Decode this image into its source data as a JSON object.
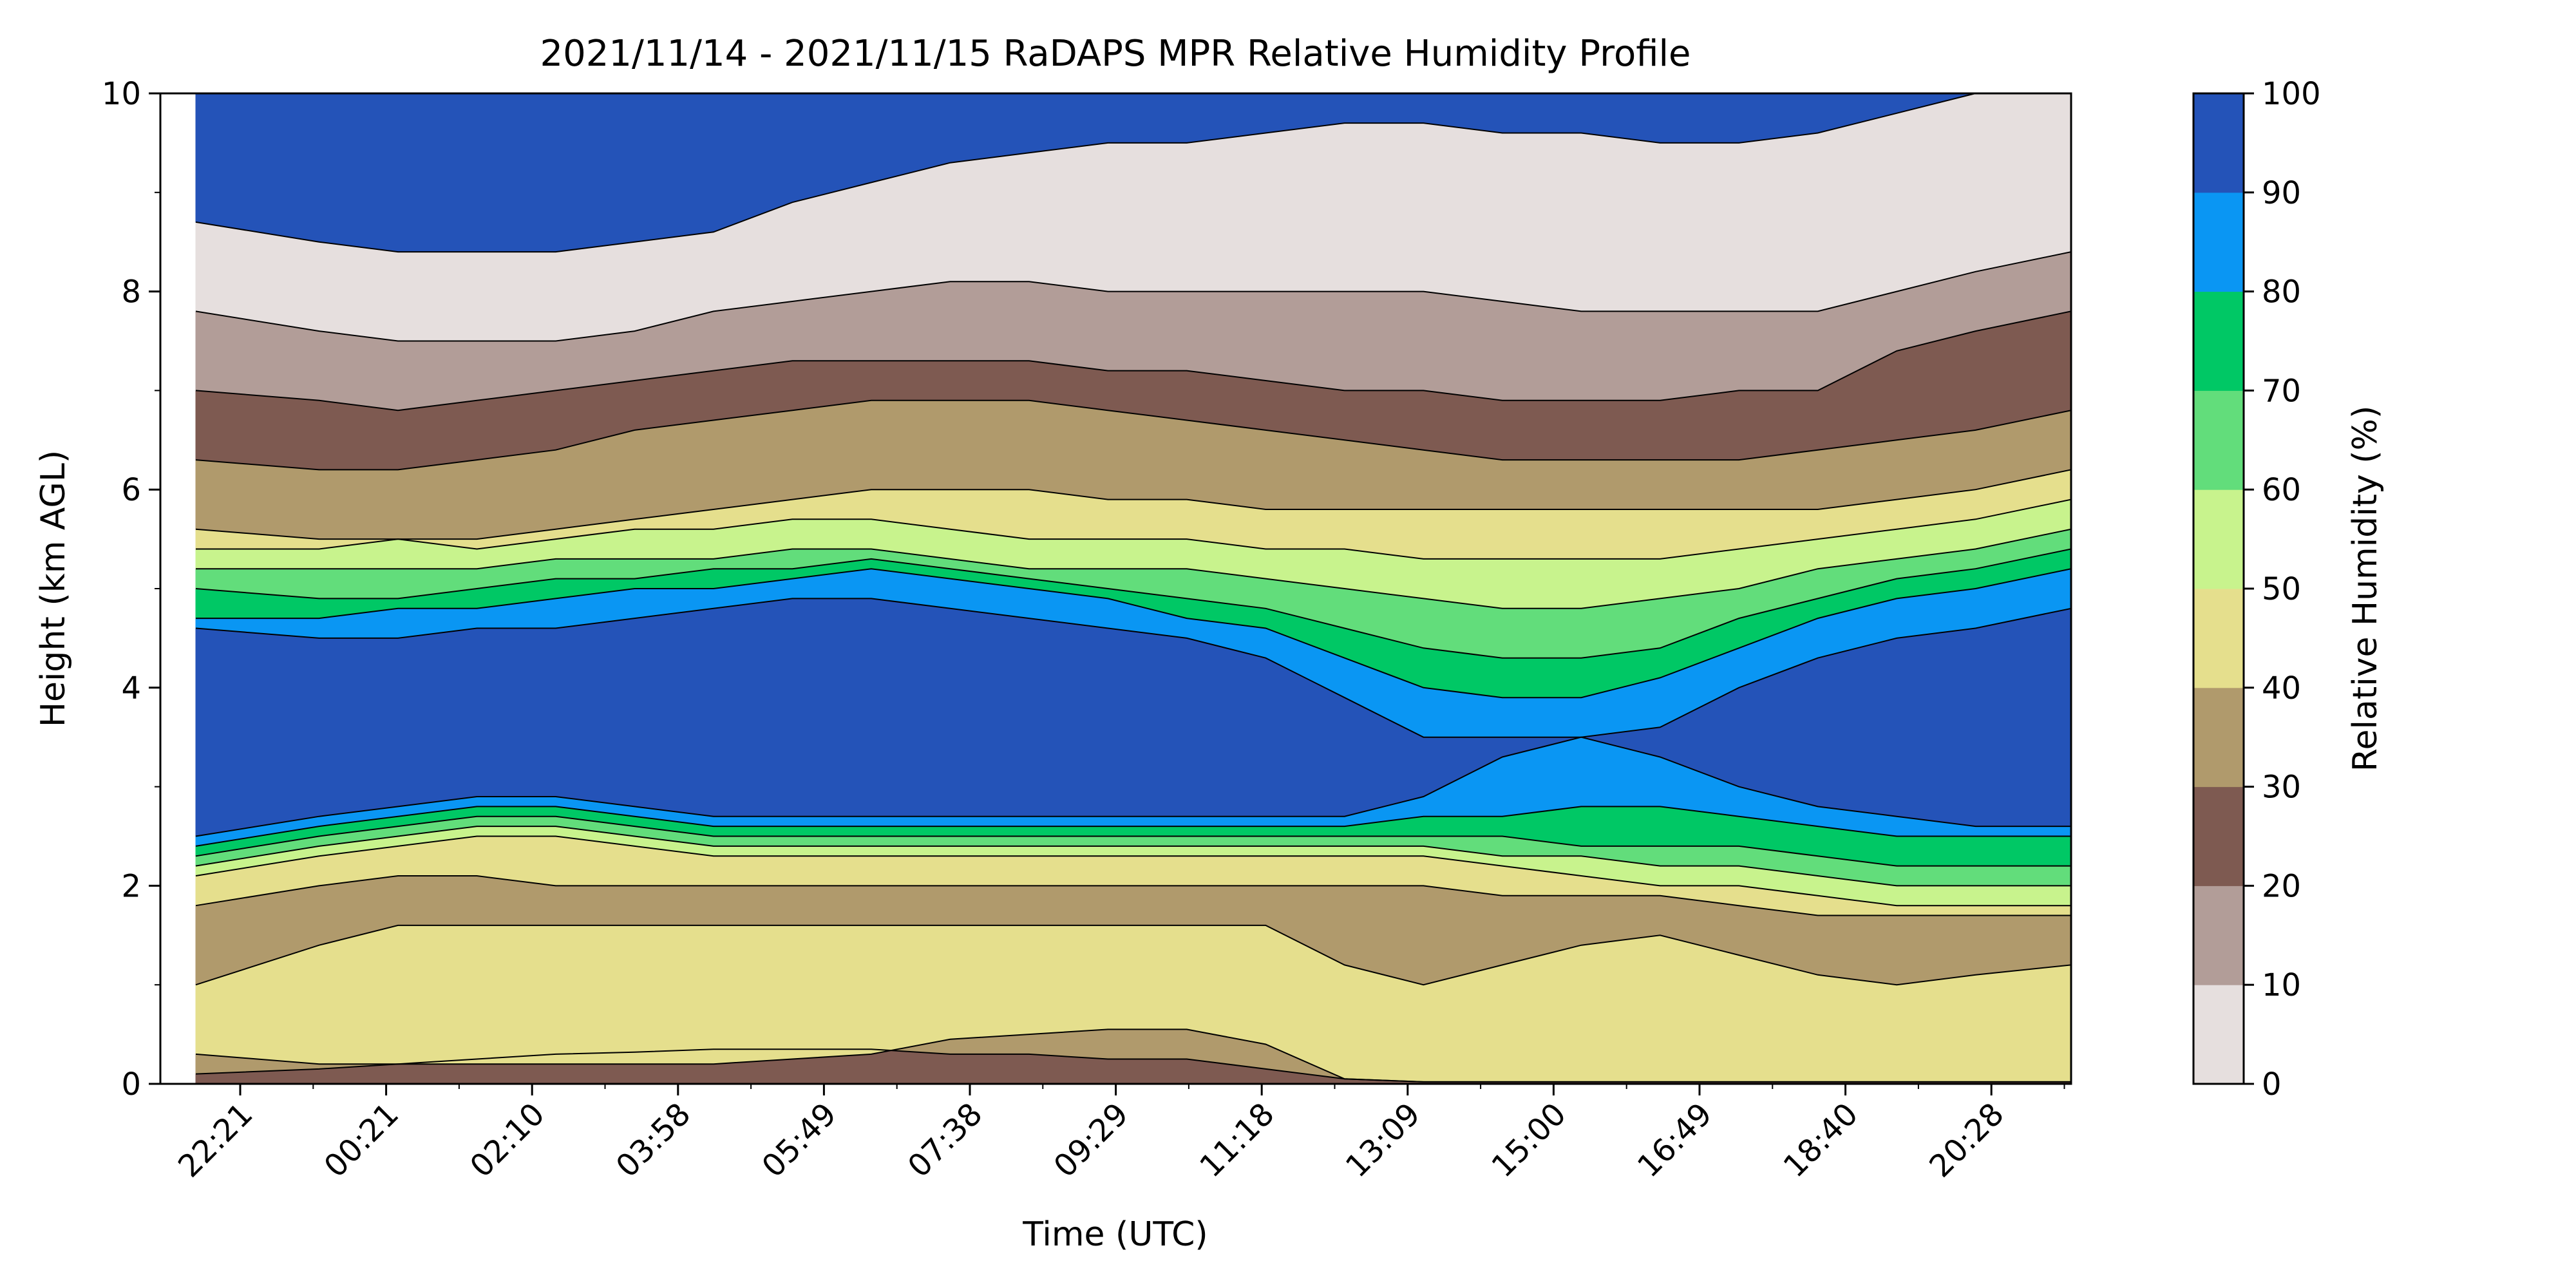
{
  "chart_data": {
    "type": "heatmap",
    "subtype": "filled-contour",
    "title": "2021/11/14 - 2021/11/15 RaDAPS MPR Relative Humidity Profile",
    "xlabel": "Time (UTC)",
    "ylabel": "Height (km AGL)",
    "x_ticks": [
      "22:21",
      "00:21",
      "02:10",
      "03:58",
      "05:49",
      "07:38",
      "09:29",
      "11:18",
      "13:09",
      "15:00",
      "16:49",
      "18:40",
      "20:28"
    ],
    "ylim": [
      0,
      10
    ],
    "y_ticks": [
      "0",
      "2",
      "4",
      "6",
      "8",
      "10"
    ],
    "colorbar": {
      "label": "Relative Humidity (%)",
      "ticks": [
        "0",
        "10",
        "20",
        "30",
        "40",
        "50",
        "60",
        "70",
        "80",
        "90",
        "100"
      ],
      "levels": [
        0,
        10,
        20,
        30,
        40,
        50,
        60,
        70,
        80,
        90,
        100
      ],
      "colors": [
        "#e6dfde",
        "#b29d98",
        "#7e5a51",
        "#b09a6c",
        "#e5df8d",
        "#c8f38d",
        "#62dd7b",
        "#00c865",
        "#0a96f3",
        "#2453b8"
      ]
    },
    "x_hours": [
      22.35,
      23.35,
      24.35,
      25.35,
      26.35,
      27.35,
      28.35,
      29.35,
      30.35,
      31.35,
      32.35,
      33.35,
      34.35,
      35.35,
      36.35,
      37.35,
      38.35,
      39.35,
      40.35,
      41.35,
      42.35,
      43.35,
      44.35,
      45.35
    ],
    "boundaries_km": [
      [
        0.1,
        0.15,
        0.2,
        0.25,
        0.3,
        0.32,
        0.35,
        0.35,
        0.35,
        0.3,
        0.3,
        0.25,
        0.25,
        0.15,
        0.05,
        0.02,
        0.02,
        0.02,
        0.02,
        0.02,
        0.02,
        0.02,
        0.02,
        0.02
      ],
      [
        0.3,
        0.2,
        0.2,
        0.2,
        0.2,
        0.2,
        0.2,
        0.25,
        0.3,
        0.45,
        0.5,
        0.55,
        0.55,
        0.4,
        0.05,
        0.02,
        0.02,
        0.02,
        0.02,
        0.02,
        0.02,
        0.02,
        0.02,
        0.02
      ],
      [
        1.0,
        1.4,
        1.6,
        1.6,
        1.6,
        1.6,
        1.6,
        1.6,
        1.6,
        1.6,
        1.6,
        1.6,
        1.6,
        1.6,
        1.2,
        1.0,
        1.2,
        1.4,
        1.5,
        1.3,
        1.1,
        1.0,
        1.1,
        1.2
      ],
      [
        1.8,
        2.0,
        2.1,
        2.1,
        2.0,
        2.0,
        2.0,
        2.0,
        2.0,
        2.0,
        2.0,
        2.0,
        2.0,
        2.0,
        2.0,
        2.0,
        1.9,
        1.9,
        1.9,
        1.8,
        1.7,
        1.7,
        1.7,
        1.7
      ],
      [
        2.1,
        2.3,
        2.4,
        2.5,
        2.5,
        2.4,
        2.3,
        2.3,
        2.3,
        2.3,
        2.3,
        2.3,
        2.3,
        2.3,
        2.3,
        2.3,
        2.2,
        2.1,
        2.0,
        2.0,
        1.9,
        1.8,
        1.8,
        1.8
      ],
      [
        2.2,
        2.4,
        2.5,
        2.6,
        2.6,
        2.5,
        2.4,
        2.4,
        2.4,
        2.4,
        2.4,
        2.4,
        2.4,
        2.4,
        2.4,
        2.4,
        2.3,
        2.3,
        2.2,
        2.2,
        2.1,
        2.0,
        2.0,
        2.0
      ],
      [
        2.3,
        2.5,
        2.6,
        2.7,
        2.7,
        2.6,
        2.5,
        2.5,
        2.5,
        2.5,
        2.5,
        2.5,
        2.5,
        2.5,
        2.5,
        2.5,
        2.5,
        2.4,
        2.4,
        2.4,
        2.3,
        2.2,
        2.2,
        2.2
      ],
      [
        2.4,
        2.6,
        2.7,
        2.8,
        2.8,
        2.7,
        2.6,
        2.6,
        2.6,
        2.6,
        2.6,
        2.6,
        2.6,
        2.6,
        2.6,
        2.7,
        2.7,
        2.8,
        2.8,
        2.7,
        2.6,
        2.5,
        2.5,
        2.5
      ],
      [
        2.5,
        2.7,
        2.8,
        2.9,
        2.9,
        2.8,
        2.7,
        2.7,
        2.7,
        2.7,
        2.7,
        2.7,
        2.7,
        2.7,
        2.7,
        2.9,
        3.3,
        3.5,
        3.3,
        3.0,
        2.8,
        2.7,
        2.6,
        2.6
      ],
      [
        4.6,
        4.5,
        4.5,
        4.6,
        4.6,
        4.7,
        4.8,
        4.9,
        4.9,
        4.8,
        4.7,
        4.6,
        4.5,
        4.3,
        3.9,
        3.5,
        3.5,
        3.5,
        3.6,
        4.0,
        4.3,
        4.5,
        4.6,
        4.8
      ],
      [
        4.7,
        4.7,
        4.8,
        4.8,
        4.9,
        5.0,
        5.0,
        5.1,
        5.2,
        5.1,
        5.0,
        4.9,
        4.7,
        4.6,
        4.3,
        4.0,
        3.9,
        3.9,
        4.1,
        4.4,
        4.7,
        4.9,
        5.0,
        5.2
      ],
      [
        5.0,
        4.9,
        4.9,
        5.0,
        5.1,
        5.1,
        5.2,
        5.2,
        5.3,
        5.2,
        5.1,
        5.0,
        4.9,
        4.8,
        4.6,
        4.4,
        4.3,
        4.3,
        4.4,
        4.7,
        4.9,
        5.1,
        5.2,
        5.4
      ],
      [
        5.2,
        5.2,
        5.2,
        5.2,
        5.3,
        5.3,
        5.3,
        5.4,
        5.4,
        5.3,
        5.2,
        5.2,
        5.2,
        5.1,
        5.0,
        4.9,
        4.8,
        4.8,
        4.9,
        5.0,
        5.2,
        5.3,
        5.4,
        5.6
      ],
      [
        5.4,
        5.4,
        5.5,
        5.4,
        5.5,
        5.6,
        5.6,
        5.7,
        5.7,
        5.6,
        5.5,
        5.5,
        5.5,
        5.4,
        5.4,
        5.3,
        5.3,
        5.3,
        5.3,
        5.4,
        5.5,
        5.6,
        5.7,
        5.9
      ],
      [
        5.6,
        5.5,
        5.5,
        5.5,
        5.6,
        5.7,
        5.8,
        5.9,
        6.0,
        6.0,
        6.0,
        5.9,
        5.9,
        5.8,
        5.8,
        5.8,
        5.8,
        5.8,
        5.8,
        5.8,
        5.8,
        5.9,
        6.0,
        6.2
      ],
      [
        6.3,
        6.2,
        6.2,
        6.3,
        6.4,
        6.6,
        6.7,
        6.8,
        6.9,
        6.9,
        6.9,
        6.8,
        6.7,
        6.6,
        6.5,
        6.4,
        6.3,
        6.3,
        6.3,
        6.3,
        6.4,
        6.5,
        6.6,
        6.8
      ],
      [
        7.0,
        6.9,
        6.8,
        6.9,
        7.0,
        7.1,
        7.2,
        7.3,
        7.3,
        7.3,
        7.3,
        7.2,
        7.2,
        7.1,
        7.0,
        7.0,
        6.9,
        6.9,
        6.9,
        7.0,
        7.0,
        7.4,
        7.6,
        7.8
      ],
      [
        7.8,
        7.6,
        7.5,
        7.5,
        7.5,
        7.6,
        7.8,
        7.9,
        8.0,
        8.1,
        8.1,
        8.0,
        8.0,
        8.0,
        8.0,
        8.0,
        7.9,
        7.8,
        7.8,
        7.8,
        7.8,
        8.0,
        8.2,
        8.4
      ],
      [
        8.7,
        8.5,
        8.4,
        8.4,
        8.4,
        8.5,
        8.6,
        8.9,
        9.1,
        9.3,
        9.4,
        9.5,
        9.5,
        9.6,
        9.7,
        9.7,
        9.6,
        9.6,
        9.5,
        9.5,
        9.6,
        9.8,
        10.0,
        10.0
      ]
    ],
    "band_rh_mid": [
      25,
      35,
      45,
      35,
      45,
      55,
      65,
      75,
      85,
      95,
      85,
      75,
      65,
      55,
      45,
      35,
      25,
      15,
      5
    ]
  }
}
